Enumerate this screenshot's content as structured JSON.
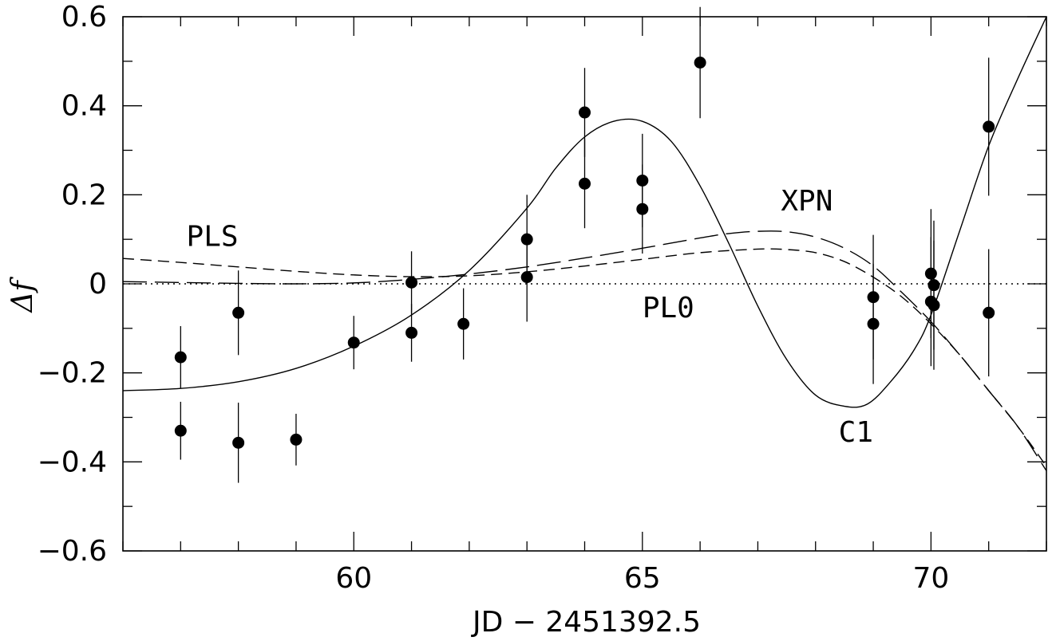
{
  "chart_data": {
    "type": "scatter",
    "xlabel": "JD − 2451392.5",
    "ylabel": "Δf",
    "xlim": [
      56.0,
      72.0
    ],
    "ylim": [
      -0.6,
      0.6
    ],
    "x_ticks": [
      60,
      65,
      70
    ],
    "x_tick_labels": [
      "60",
      "65",
      "70"
    ],
    "y_ticks": [
      -0.6,
      -0.4,
      -0.2,
      0,
      0.2,
      0.4,
      0.6
    ],
    "y_tick_labels": [
      "−0.6",
      "−0.4",
      "−0.2",
      "0",
      "0.2",
      "0.4",
      "0.6"
    ],
    "grid": false,
    "points": [
      {
        "x": 57.0,
        "y": -0.165,
        "err": 0.07
      },
      {
        "x": 57.0,
        "y": -0.33,
        "err": 0.065
      },
      {
        "x": 58.0,
        "y": -0.065,
        "err": 0.095
      },
      {
        "x": 58.0,
        "y": -0.357,
        "err": 0.09
      },
      {
        "x": 59.0,
        "y": -0.35,
        "err": 0.058
      },
      {
        "x": 60.0,
        "y": -0.132,
        "err": 0.06
      },
      {
        "x": 61.0,
        "y": 0.003,
        "err": 0.07
      },
      {
        "x": 61.0,
        "y": -0.11,
        "err": 0.065
      },
      {
        "x": 61.9,
        "y": -0.09,
        "err": 0.08
      },
      {
        "x": 63.0,
        "y": 0.1,
        "err": 0.1
      },
      {
        "x": 63.0,
        "y": 0.015,
        "err": 0.1
      },
      {
        "x": 64.0,
        "y": 0.385,
        "err": 0.1
      },
      {
        "x": 64.0,
        "y": 0.225,
        "err": 0.1
      },
      {
        "x": 65.0,
        "y": 0.232,
        "err": 0.105
      },
      {
        "x": 65.0,
        "y": 0.168,
        "err": 0.1
      },
      {
        "x": 66.0,
        "y": 0.497,
        "err": 0.125
      },
      {
        "x": 69.0,
        "y": -0.03,
        "err": 0.14
      },
      {
        "x": 69.0,
        "y": -0.09,
        "err": 0.135
      },
      {
        "x": 70.0,
        "y": 0.023,
        "err": 0.145
      },
      {
        "x": 70.05,
        "y": -0.003,
        "err": 0.145
      },
      {
        "x": 70.0,
        "y": -0.04,
        "err": 0.145
      },
      {
        "x": 70.05,
        "y": -0.048,
        "err": 0.145
      },
      {
        "x": 71.0,
        "y": 0.353,
        "err": 0.155
      },
      {
        "x": 71.0,
        "y": -0.065,
        "err": 0.143
      }
    ],
    "curves": [
      {
        "name": "C1",
        "style": "solid",
        "x": [
          56.0,
          57.0,
          58.0,
          59.0,
          60.0,
          61.0,
          62.0,
          63.0,
          63.5,
          64.0,
          64.5,
          65.0,
          65.5,
          66.0,
          66.5,
          67.0,
          67.5,
          68.0,
          68.5,
          68.9,
          69.3,
          69.7,
          70.0,
          70.5,
          71.0,
          71.5,
          72.0
        ],
        "y": [
          -0.24,
          -0.235,
          -0.22,
          -0.19,
          -0.14,
          -0.07,
          0.03,
          0.17,
          0.26,
          0.33,
          0.365,
          0.365,
          0.32,
          0.22,
          0.09,
          -0.05,
          -0.17,
          -0.25,
          -0.275,
          -0.27,
          -0.22,
          -0.15,
          -0.07,
          0.12,
          0.31,
          0.46,
          0.6
        ]
      },
      {
        "name": "PLS",
        "style": "dashed",
        "x": [
          56.0,
          57.0,
          58.0,
          59.0,
          60.0,
          61.0,
          62.0,
          63.0,
          64.0,
          65.0,
          66.0,
          67.0,
          67.5,
          68.0,
          68.5,
          69.0,
          69.5,
          70.0,
          70.5,
          71.0,
          71.5,
          72.0
        ],
        "y": [
          0.057,
          0.048,
          0.038,
          0.028,
          0.02,
          0.016,
          0.018,
          0.027,
          0.04,
          0.055,
          0.07,
          0.078,
          0.077,
          0.07,
          0.05,
          0.015,
          -0.03,
          -0.09,
          -0.16,
          -0.24,
          -0.32,
          -0.41
        ]
      },
      {
        "name": "XPN",
        "style": "long-dashed",
        "x": [
          56.0,
          57.0,
          58.0,
          59.0,
          60.0,
          61.0,
          62.0,
          63.0,
          64.0,
          65.0,
          66.0,
          66.5,
          67.0,
          67.5,
          68.0,
          68.5,
          69.0,
          69.5,
          70.0,
          70.5,
          71.0,
          71.5,
          72.0
        ],
        "y": [
          0.005,
          0.003,
          0.001,
          0.0,
          0.002,
          0.01,
          0.022,
          0.038,
          0.058,
          0.08,
          0.103,
          0.113,
          0.118,
          0.117,
          0.105,
          0.08,
          0.04,
          -0.02,
          -0.085,
          -0.16,
          -0.24,
          -0.32,
          -0.42
        ]
      },
      {
        "name": "PL0",
        "style": "dotted",
        "x": [
          56.0,
          72.0
        ],
        "y": [
          0,
          0
        ]
      }
    ],
    "annotations": [
      {
        "text": "PLS",
        "x": 57.1,
        "y": 0.085
      },
      {
        "text": "XPN",
        "x": 67.4,
        "y": 0.165
      },
      {
        "text": "PL0",
        "x": 65.0,
        "y": -0.075
      },
      {
        "text": "C1",
        "x": 68.4,
        "y": -0.355
      }
    ]
  }
}
